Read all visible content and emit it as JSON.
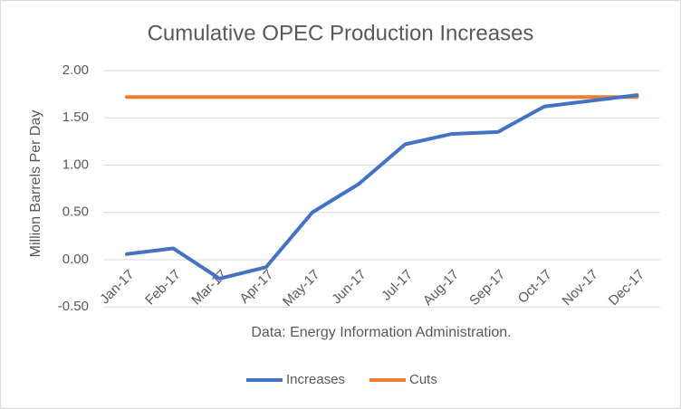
{
  "chart_data": {
    "type": "line",
    "title": "Cumulative OPEC Production Increases",
    "y_label": "Million Barrels Per Day",
    "annotation": "Data: Energy Information Administration.",
    "categories": [
      "Jan-17",
      "Feb-17",
      "Mar-17",
      "Apr-17",
      "May-17",
      "Jun-17",
      "Jul-17",
      "Aug-17",
      "Sep-17",
      "Oct-17",
      "Nov-17",
      "Dec-17"
    ],
    "series": [
      {
        "name": "Increases",
        "color": "#4472c4",
        "values": [
          0.06,
          0.12,
          -0.2,
          -0.08,
          0.5,
          0.8,
          1.22,
          1.33,
          1.35,
          1.62,
          1.68,
          1.74
        ]
      },
      {
        "name": "Cuts",
        "color": "#ed7d31",
        "values": [
          1.72,
          1.72,
          1.72,
          1.72,
          1.72,
          1.72,
          1.72,
          1.72,
          1.72,
          1.72,
          1.72,
          1.72
        ]
      }
    ],
    "ylim": [
      -0.5,
      2.0
    ],
    "yticks": [
      {
        "value": -0.5,
        "label": "-0.50"
      },
      {
        "value": 0,
        "label": "0.00"
      },
      {
        "value": 0.5,
        "label": "0.50"
      },
      {
        "value": 1.0,
        "label": "1.00"
      },
      {
        "value": 1.5,
        "label": "1.50"
      },
      {
        "value": 2.0,
        "label": "2.00"
      }
    ],
    "grid": true,
    "legend": "bottom"
  }
}
